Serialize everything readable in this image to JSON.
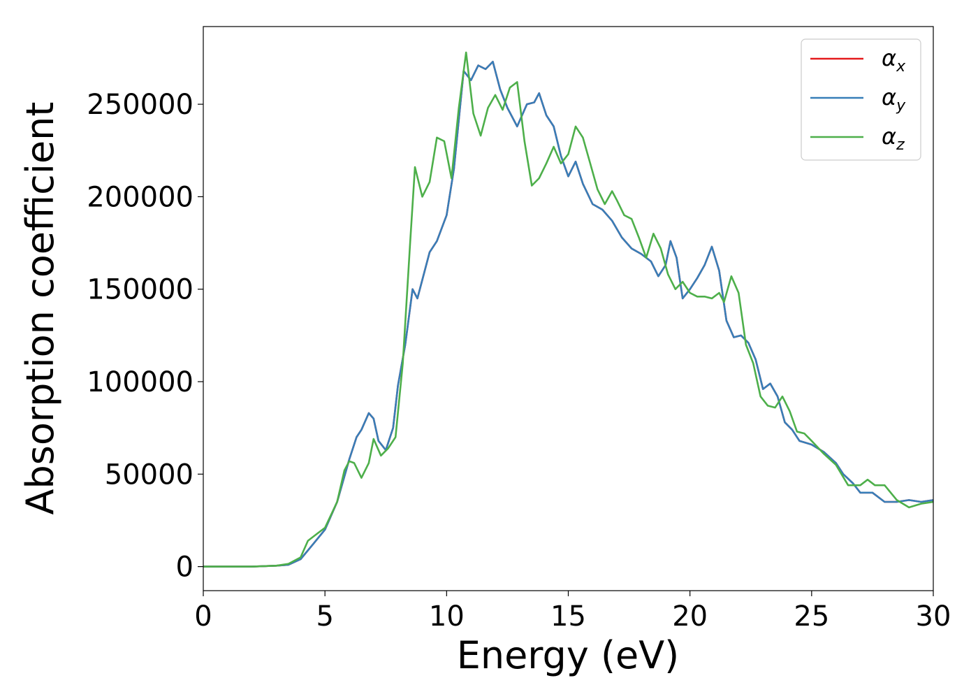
{
  "chart_data": {
    "type": "line",
    "xlabel": "Energy (eV)",
    "ylabel": "Absorption coefficient",
    "xlim": [
      0,
      30
    ],
    "ylim": [
      -13000,
      292000
    ],
    "x_ticks": [
      0,
      5,
      10,
      15,
      20,
      25,
      30
    ],
    "y_ticks": [
      0,
      50000,
      100000,
      150000,
      200000,
      250000
    ],
    "grid": false,
    "legend_position": "top-right",
    "series": [
      {
        "name": "α",
        "subscript": "x",
        "color": "#e41a1c",
        "x": [
          0,
          1,
          2,
          3,
          3.5,
          4,
          4.5,
          5,
          5.5,
          6,
          6.3,
          6.5,
          6.8,
          7,
          7.2,
          7.5,
          7.8,
          8,
          8.3,
          8.6,
          8.8,
          9,
          9.3,
          9.6,
          10,
          10.3,
          10.7,
          11,
          11.3,
          11.6,
          11.9,
          12.2,
          12.5,
          12.9,
          13.3,
          13.6,
          13.8,
          14.1,
          14.4,
          14.7,
          15,
          15.3,
          15.6,
          16,
          16.4,
          16.8,
          17.2,
          17.6,
          18,
          18.4,
          18.7,
          19,
          19.2,
          19.45,
          19.7,
          20,
          20.3,
          20.6,
          20.9,
          21.2,
          21.5,
          21.8,
          22.1,
          22.4,
          22.7,
          23,
          23.3,
          23.6,
          23.9,
          24.2,
          24.5,
          25,
          25.5,
          26,
          26.3,
          26.7,
          27,
          27.5,
          28,
          28.5,
          29,
          29.5,
          30
        ],
        "y": [
          0,
          0,
          0,
          500,
          1000,
          4000,
          12000,
          20000,
          35000,
          58000,
          70000,
          74000,
          83000,
          80000,
          68000,
          63000,
          75000,
          98000,
          120000,
          150000,
          145000,
          155000,
          170000,
          176000,
          190000,
          215000,
          268000,
          263000,
          271000,
          269000,
          273000,
          258000,
          248000,
          238000,
          250000,
          251000,
          256000,
          244000,
          238000,
          222000,
          211000,
          219000,
          207000,
          196000,
          193000,
          187000,
          178000,
          172000,
          169000,
          165000,
          157000,
          163000,
          176000,
          167000,
          145000,
          150000,
          156000,
          163000,
          173000,
          160000,
          133000,
          124000,
          125000,
          121000,
          112000,
          96000,
          99000,
          92000,
          78000,
          74000,
          68000,
          66000,
          62000,
          56000,
          50000,
          45000,
          40000,
          40000,
          35000,
          35000,
          36000,
          35000,
          36000
        ]
      },
      {
        "name": "α",
        "subscript": "y",
        "color": "#377eb8",
        "x": [
          0,
          1,
          2,
          3,
          3.5,
          4,
          4.5,
          5,
          5.5,
          6,
          6.3,
          6.5,
          6.8,
          7,
          7.2,
          7.5,
          7.8,
          8,
          8.3,
          8.6,
          8.8,
          9,
          9.3,
          9.6,
          10,
          10.3,
          10.7,
          11,
          11.3,
          11.6,
          11.9,
          12.2,
          12.5,
          12.9,
          13.3,
          13.6,
          13.8,
          14.1,
          14.4,
          14.7,
          15,
          15.3,
          15.6,
          16,
          16.4,
          16.8,
          17.2,
          17.6,
          18,
          18.4,
          18.7,
          19,
          19.2,
          19.45,
          19.7,
          20,
          20.3,
          20.6,
          20.9,
          21.2,
          21.5,
          21.8,
          22.1,
          22.4,
          22.7,
          23,
          23.3,
          23.6,
          23.9,
          24.2,
          24.5,
          25,
          25.5,
          26,
          26.3,
          26.7,
          27,
          27.5,
          28,
          28.5,
          29,
          29.5,
          30
        ],
        "y": [
          0,
          0,
          0,
          500,
          1000,
          4000,
          12000,
          20000,
          35000,
          58000,
          70000,
          74000,
          83000,
          80000,
          68000,
          63000,
          75000,
          98000,
          120000,
          150000,
          145000,
          155000,
          170000,
          176000,
          190000,
          215000,
          268000,
          263000,
          271000,
          269000,
          273000,
          258000,
          248000,
          238000,
          250000,
          251000,
          256000,
          244000,
          238000,
          222000,
          211000,
          219000,
          207000,
          196000,
          193000,
          187000,
          178000,
          172000,
          169000,
          165000,
          157000,
          163000,
          176000,
          167000,
          145000,
          150000,
          156000,
          163000,
          173000,
          160000,
          133000,
          124000,
          125000,
          121000,
          112000,
          96000,
          99000,
          92000,
          78000,
          74000,
          68000,
          66000,
          62000,
          56000,
          50000,
          45000,
          40000,
          40000,
          35000,
          35000,
          36000,
          35000,
          36000
        ]
      },
      {
        "name": "α",
        "subscript": "z",
        "color": "#4daf4a",
        "x": [
          0,
          1,
          2,
          3,
          3.5,
          4,
          4.3,
          4.6,
          5,
          5.5,
          5.8,
          6,
          6.2,
          6.5,
          6.8,
          7,
          7.3,
          7.6,
          7.9,
          8.2,
          8.5,
          8.7,
          9,
          9.3,
          9.6,
          9.9,
          10.2,
          10.5,
          10.8,
          11.1,
          11.4,
          11.7,
          12,
          12.3,
          12.6,
          12.9,
          13.2,
          13.5,
          13.8,
          14.1,
          14.4,
          14.7,
          15,
          15.3,
          15.6,
          15.9,
          16.2,
          16.5,
          16.8,
          17,
          17.3,
          17.6,
          17.9,
          18.2,
          18.5,
          18.8,
          19.1,
          19.4,
          19.7,
          20,
          20.3,
          20.6,
          20.9,
          21.2,
          21.4,
          21.7,
          22,
          22.3,
          22.6,
          22.9,
          23.2,
          23.5,
          23.8,
          24.1,
          24.4,
          24.7,
          25,
          25.5,
          26,
          26.5,
          27,
          27.3,
          27.6,
          28,
          28.5,
          29,
          29.5,
          30
        ],
        "y": [
          0,
          0,
          0,
          500,
          1500,
          5000,
          14000,
          17000,
          21000,
          35000,
          52000,
          57000,
          56000,
          48000,
          56000,
          69000,
          60000,
          64000,
          70000,
          110000,
          175000,
          216000,
          200000,
          208000,
          232000,
          230000,
          210000,
          248000,
          278000,
          245000,
          233000,
          248000,
          255000,
          247000,
          259000,
          262000,
          230000,
          206000,
          210000,
          218000,
          227000,
          218000,
          223000,
          238000,
          232000,
          218000,
          204000,
          196000,
          203000,
          198000,
          190000,
          188000,
          178000,
          167000,
          180000,
          172000,
          158000,
          150000,
          154000,
          148000,
          146000,
          146000,
          145000,
          148000,
          143000,
          157000,
          148000,
          120000,
          110000,
          92000,
          87000,
          86000,
          92000,
          84000,
          73000,
          72000,
          68000,
          61000,
          55000,
          44000,
          44000,
          47000,
          44000,
          44000,
          36000,
          32000,
          34000,
          35000
        ]
      }
    ]
  }
}
